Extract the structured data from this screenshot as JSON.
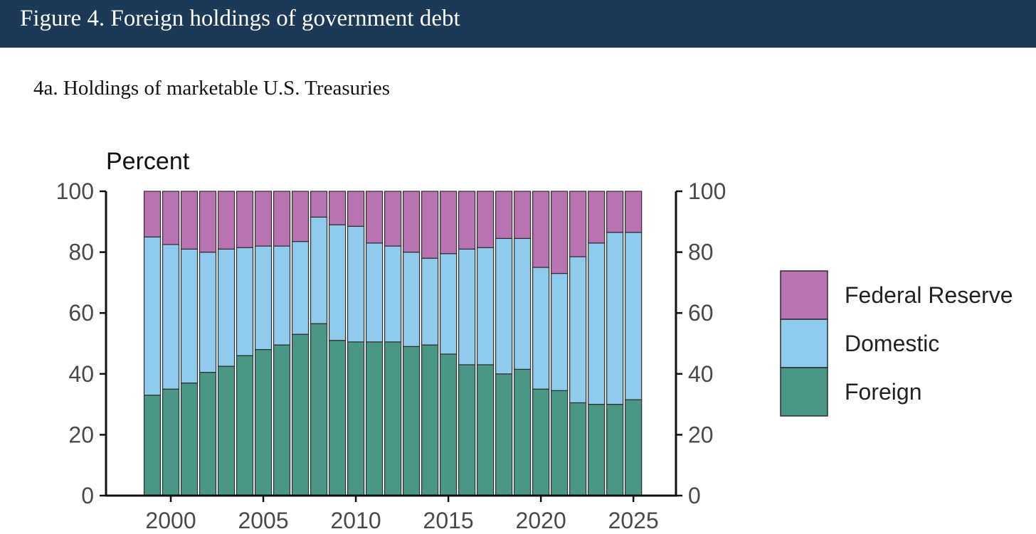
{
  "header": {
    "title": "Figure 4. Foreign holdings of government debt"
  },
  "colors": {
    "header_bg": "#1c3a57",
    "federal_reserve": "#b972b2",
    "domestic": "#8fcbec",
    "foreign": "#4b9786",
    "bar_outline": "#2d2d2d"
  },
  "chart_data": {
    "type": "bar",
    "stacked": true,
    "title": "4a. Holdings of marketable U.S. Treasuries",
    "ylabel": "Percent",
    "xlabel": "",
    "ylim": [
      0,
      100
    ],
    "yticks": [
      0,
      20,
      40,
      60,
      80,
      100
    ],
    "secondary_yaxis": true,
    "xticks": [
      2000,
      2005,
      2010,
      2015,
      2020,
      2025
    ],
    "xlim": [
      1996.5,
      2027.3
    ],
    "x": [
      1999,
      2000,
      2001,
      2002,
      2003,
      2004,
      2005,
      2006,
      2007,
      2008,
      2009,
      2010,
      2011,
      2012,
      2013,
      2014,
      2015,
      2016,
      2017,
      2018,
      2019,
      2020,
      2021,
      2022,
      2023,
      2024,
      2025
    ],
    "series": [
      {
        "name": "Foreign",
        "values": [
          33,
          35,
          37,
          40.5,
          42.5,
          46,
          48,
          49.5,
          53,
          56.5,
          51,
          50.5,
          50.5,
          50.5,
          49,
          49.5,
          46.5,
          43,
          43,
          40,
          41.5,
          35,
          34.5,
          30.5,
          30,
          30,
          31.5
        ]
      },
      {
        "name": "Domestic",
        "values": [
          52,
          47.5,
          44,
          39.5,
          38.5,
          35.5,
          34,
          32.5,
          30.5,
          35,
          38,
          38,
          32.5,
          31.5,
          31,
          28.5,
          33,
          38,
          38.5,
          44.5,
          43,
          40,
          38.5,
          48,
          53,
          56.5,
          55
        ]
      },
      {
        "name": "Federal Reserve",
        "values": [
          15,
          17.5,
          19,
          20,
          19,
          18.5,
          18,
          18,
          16.5,
          8.5,
          11,
          11.5,
          17,
          18,
          20,
          22,
          20.5,
          19,
          18.5,
          15.5,
          15.5,
          25,
          27,
          21.5,
          17,
          13.5,
          13.5
        ]
      }
    ],
    "legend": [
      "Federal Reserve",
      "Domestic",
      "Foreign"
    ],
    "legend_position": "right"
  }
}
